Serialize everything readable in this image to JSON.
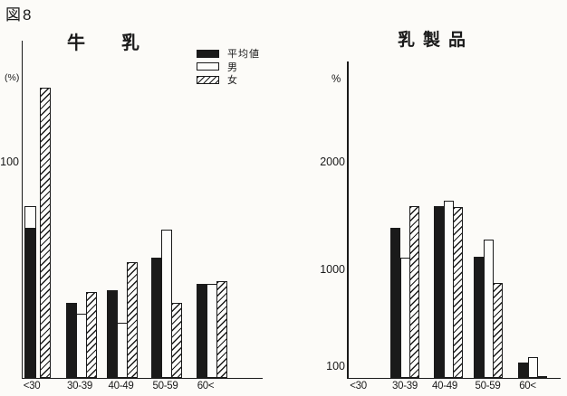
{
  "figure_label": "図8",
  "colors": {
    "ink": "#1a1a1a",
    "paper": "#fcfbf8"
  },
  "legend": {
    "average": "平均値",
    "male": "男",
    "female": "女"
  },
  "chart_data": [
    {
      "type": "bar",
      "title": "牛乳",
      "ylabel": "(%)",
      "categories": [
        "<30",
        "30-39",
        "40-49",
        "50-59",
        "60<"
      ],
      "yticks": [
        {
          "value": 100,
          "label": "100"
        }
      ],
      "ylim": [
        0,
        157
      ],
      "grid": false,
      "legend_position": "top-right",
      "series": [
        {
          "name": "平均値",
          "style": "solid-black",
          "values": [
            70,
            35,
            41,
            56,
            44
          ]
        },
        {
          "name": "男",
          "style": "open-white",
          "values": [
            80,
            30,
            26,
            69,
            44
          ]
        },
        {
          "name": "女",
          "style": "hatched",
          "values": [
            135,
            40,
            54,
            35,
            45
          ]
        }
      ]
    },
    {
      "type": "bar",
      "title": "乳製品",
      "ylabel": "%",
      "categories": [
        "<30",
        "30-39",
        "40-49",
        "50-59",
        "60<"
      ],
      "yticks": [
        {
          "value": 100,
          "label": "100"
        },
        {
          "value": 1000,
          "label": "1000"
        },
        {
          "value": 2000,
          "label": "2000"
        }
      ],
      "ylim": [
        0,
        2940
      ],
      "grid": false,
      "series": [
        {
          "name": "平均値",
          "style": "solid-black",
          "values": [
            null,
            1400,
            1600,
            1130,
            145
          ]
        },
        {
          "name": "男",
          "style": "open-white",
          "values": [
            null,
            1120,
            1650,
            1290,
            200
          ]
        },
        {
          "name": "女",
          "style": "hatched",
          "values": [
            null,
            1600,
            1590,
            890,
            25
          ]
        }
      ]
    }
  ]
}
